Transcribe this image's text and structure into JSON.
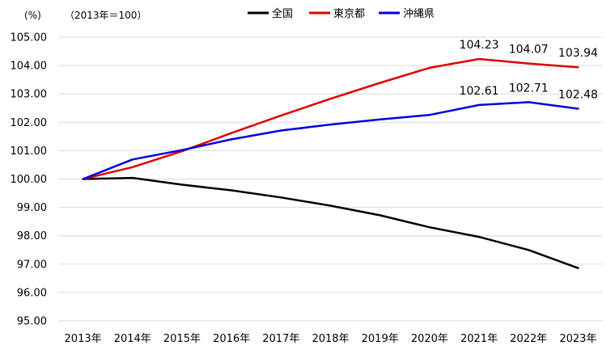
{
  "chart_data": {
    "type": "line",
    "unit_label": "(%)",
    "base_note": "（2013年＝100）",
    "categories": [
      "2013年",
      "2014年",
      "2015年",
      "2016年",
      "2017年",
      "2018年",
      "2019年",
      "2020年",
      "2021年",
      "2022年",
      "2023年"
    ],
    "ylim": [
      95,
      105
    ],
    "y_ticks": [
      95,
      96,
      97,
      98,
      99,
      100,
      101,
      102,
      103,
      104,
      105
    ],
    "y_tick_labels": [
      "95.00",
      "96.00",
      "97.00",
      "98.00",
      "99.00",
      "100.00",
      "101.00",
      "102.00",
      "103.00",
      "104.00",
      "105.00"
    ],
    "grid": true,
    "legend_position": "top-center",
    "series": [
      {
        "name": "全国",
        "color": "#000000",
        "values": [
          100.0,
          100.04,
          99.8,
          99.6,
          99.35,
          99.06,
          98.72,
          98.3,
          97.96,
          97.5,
          96.86
        ]
      },
      {
        "name": "東京都",
        "color": "#e00000",
        "values": [
          100.0,
          100.42,
          100.98,
          101.62,
          102.24,
          102.83,
          103.39,
          103.92,
          104.23,
          104.07,
          103.94
        ],
        "data_labels": [
          {
            "index": 8,
            "text": "104.23"
          },
          {
            "index": 9,
            "text": "104.07"
          },
          {
            "index": 10,
            "text": "103.94"
          }
        ]
      },
      {
        "name": "沖縄県",
        "color": "#0000e0",
        "values": [
          100.0,
          100.69,
          101.02,
          101.4,
          101.71,
          101.92,
          102.1,
          102.26,
          102.61,
          102.71,
          102.48
        ],
        "data_labels": [
          {
            "index": 8,
            "text": "102.61"
          },
          {
            "index": 9,
            "text": "102.71"
          },
          {
            "index": 10,
            "text": "102.48"
          }
        ]
      }
    ]
  }
}
